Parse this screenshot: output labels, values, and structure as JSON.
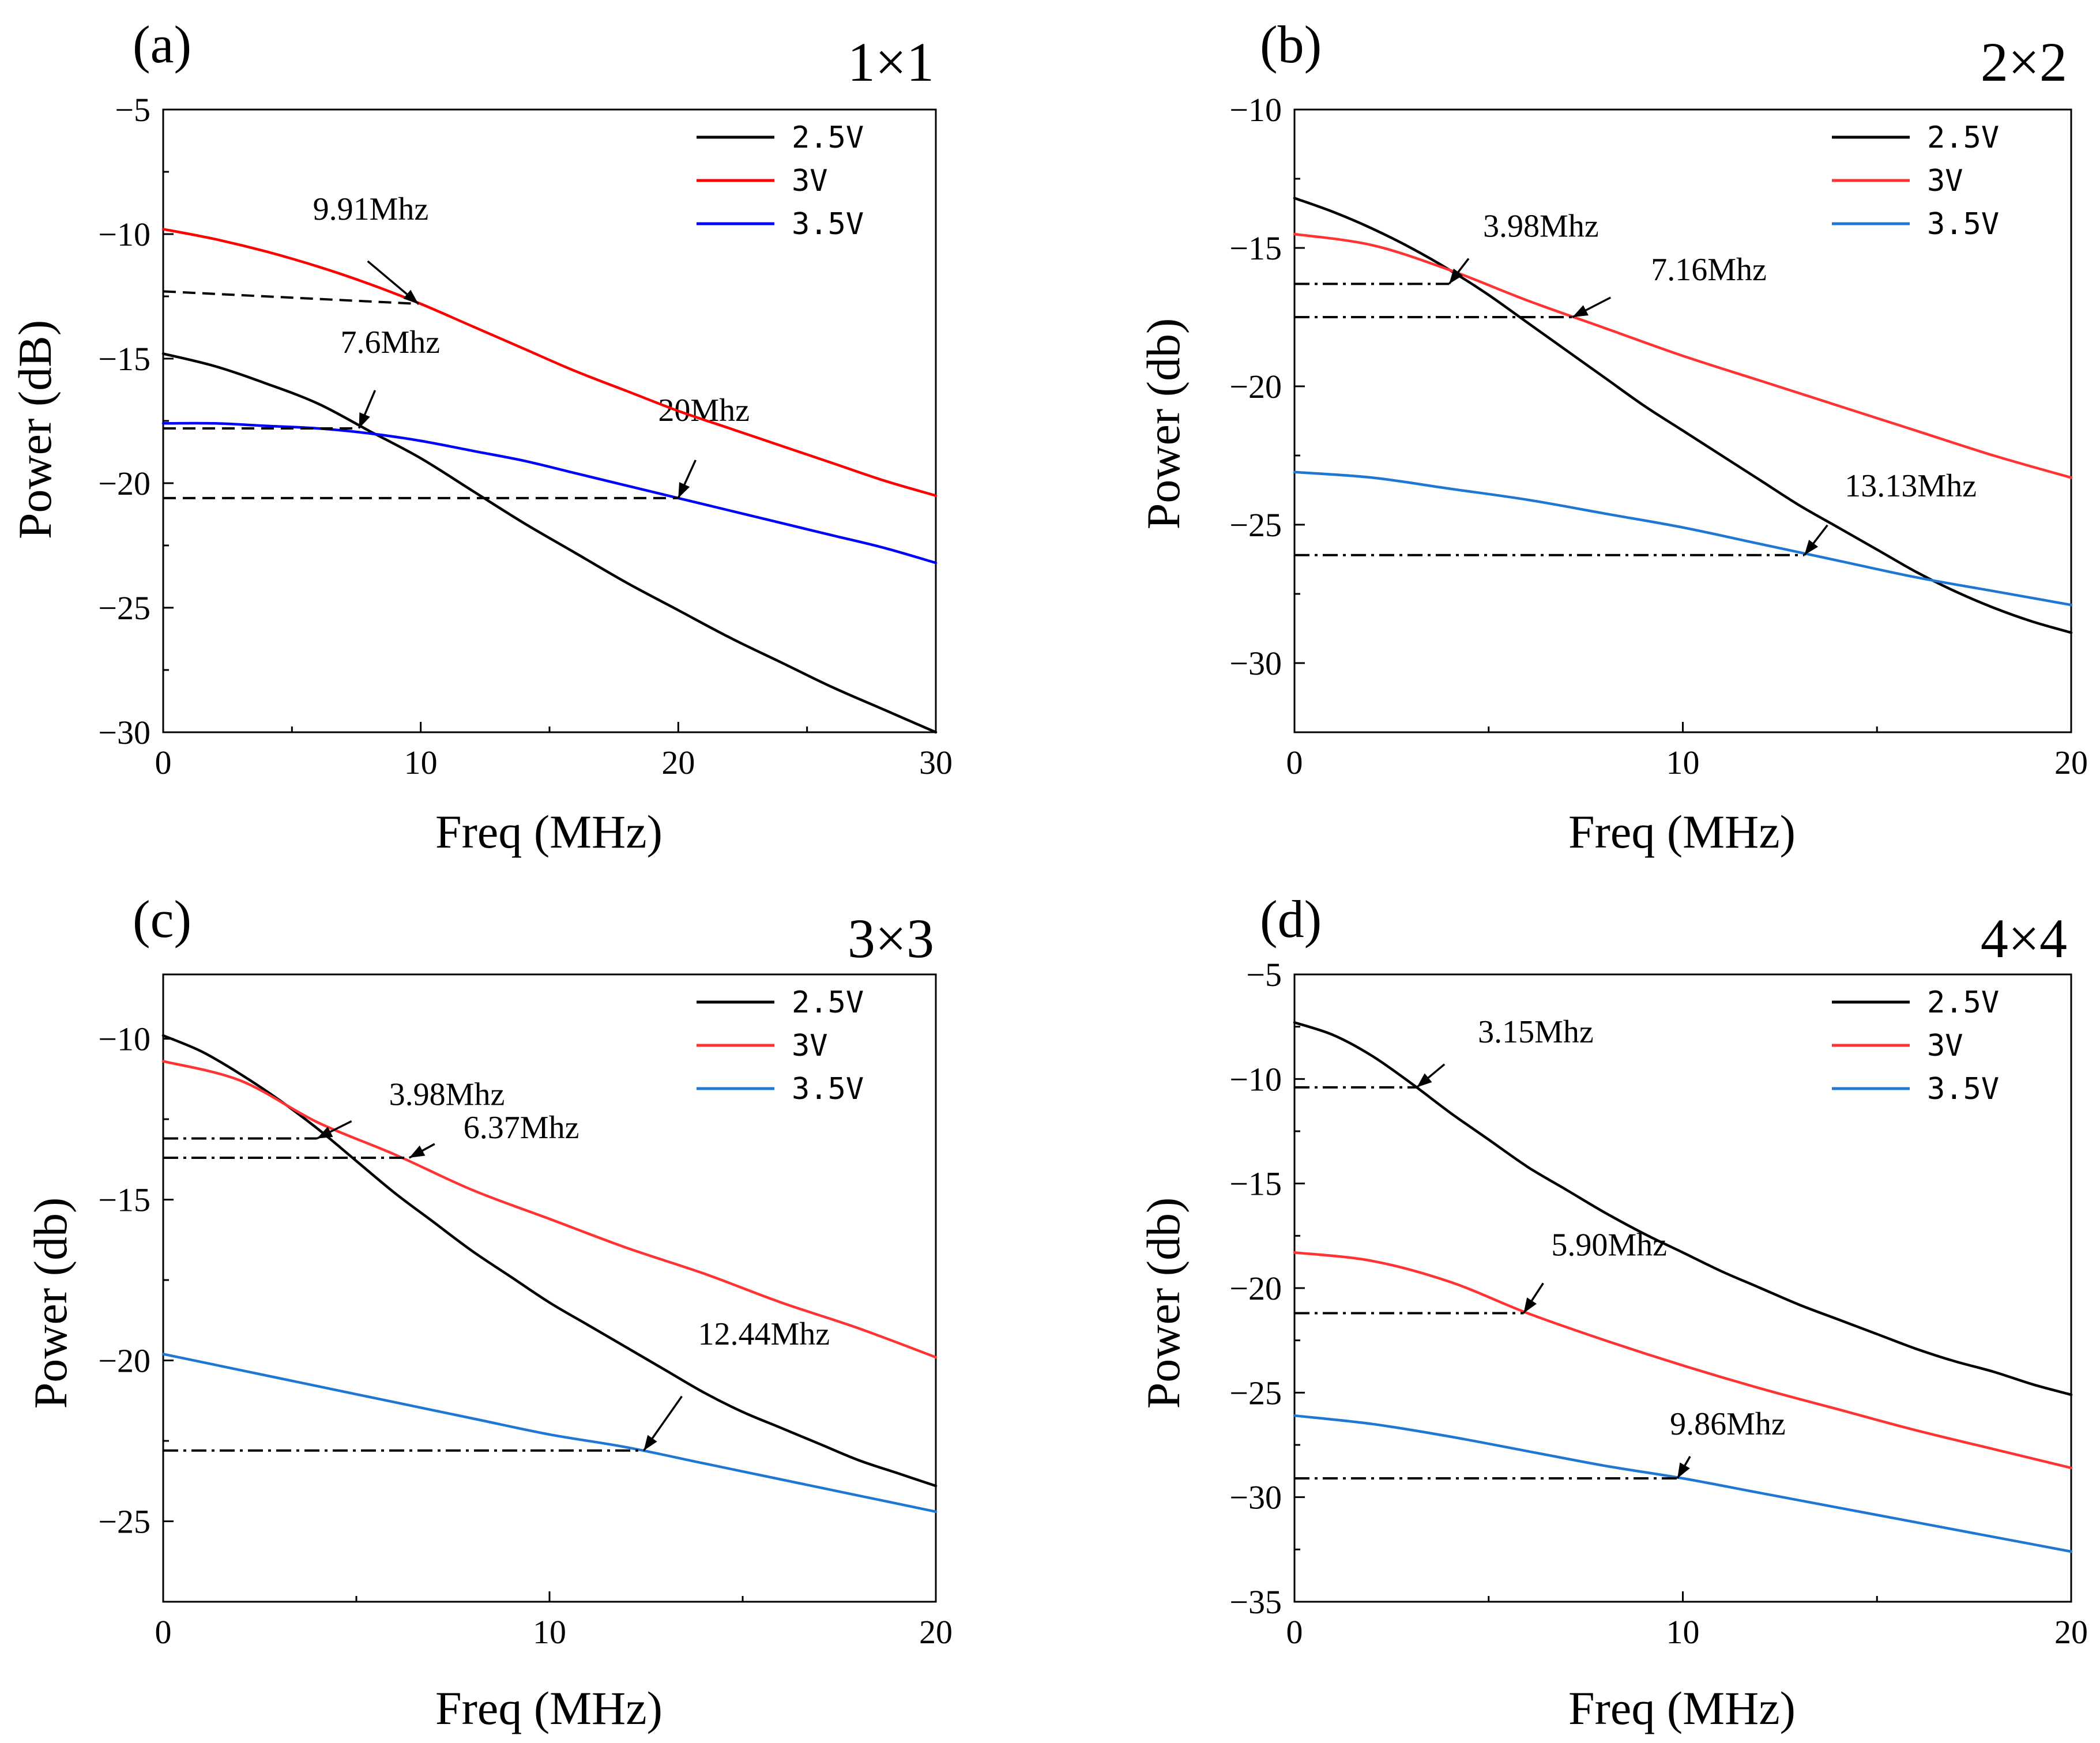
{
  "chart_data": [
    {
      "type": "line",
      "panel_label": "(a)",
      "subtitle": "1×1",
      "xlabel": "Freq (MHz)",
      "ylabel": "Power (dB)",
      "xlim": [
        0,
        30
      ],
      "ylim": [
        -30,
        -5
      ],
      "xticks": [
        0,
        10,
        20,
        30
      ],
      "yticks": [
        -30,
        -25,
        -20,
        -15,
        -10,
        -5
      ],
      "legend": "top-right",
      "series": [
        {
          "name": "2.5V",
          "color": "#000000",
          "x": [
            0,
            2,
            4,
            6,
            8,
            10,
            12,
            14,
            16,
            18,
            20,
            22,
            24,
            26,
            28,
            30
          ],
          "y": [
            -14.8,
            -15.3,
            -16.0,
            -16.8,
            -17.9,
            -19.0,
            -20.3,
            -21.6,
            -22.8,
            -24.0,
            -25.1,
            -26.2,
            -27.2,
            -28.2,
            -29.1,
            -30.0
          ]
        },
        {
          "name": "3V",
          "color": "#ff0000",
          "x": [
            0,
            2,
            4,
            6,
            8,
            10,
            12,
            14,
            16,
            18,
            20,
            22,
            24,
            26,
            28,
            30
          ],
          "y": [
            -9.8,
            -10.2,
            -10.7,
            -11.3,
            -12.0,
            -12.8,
            -13.7,
            -14.6,
            -15.5,
            -16.3,
            -17.1,
            -17.8,
            -18.5,
            -19.2,
            -19.9,
            -20.5
          ]
        },
        {
          "name": "3.5V",
          "color": "#0000ff",
          "x": [
            0,
            2,
            4,
            6,
            8,
            10,
            12,
            14,
            16,
            18,
            20,
            22,
            24,
            26,
            28,
            30
          ],
          "y": [
            -17.6,
            -17.6,
            -17.7,
            -17.8,
            -18.0,
            -18.3,
            -18.7,
            -19.1,
            -19.6,
            -20.1,
            -20.6,
            -21.1,
            -21.6,
            -22.1,
            -22.6,
            -23.2
          ]
        }
      ],
      "annotations": [
        {
          "text": "9.91Mhz",
          "x": 9.91,
          "y": -12.8,
          "line_style": "dashed",
          "line_x": [
            0,
            9.91
          ],
          "line_y": [
            -12.3,
            -12.8
          ]
        },
        {
          "text": "7.6Mhz",
          "x": 7.6,
          "y": -17.8,
          "line_style": "dashed",
          "line_x": [
            0,
            7.6
          ],
          "line_y": [
            -17.8,
            -17.8
          ]
        },
        {
          "text": "20Mhz",
          "x": 20,
          "y": -20.6,
          "line_style": "dashed",
          "line_x": [
            0,
            20
          ],
          "line_y": [
            -20.6,
            -20.6
          ]
        }
      ]
    },
    {
      "type": "line",
      "panel_label": "(b)",
      "subtitle": "2×2",
      "xlabel": "Freq (MHz)",
      "ylabel": "Power (db)",
      "xlim": [
        0,
        20
      ],
      "ylim": [
        -32.5,
        -10
      ],
      "xticks": [
        0,
        10,
        20
      ],
      "yticks": [
        -30,
        -25,
        -20,
        -15,
        -10
      ],
      "legend": "top-right",
      "series": [
        {
          "name": "2.5V",
          "color": "#000000",
          "x": [
            0,
            1,
            2,
            3,
            4,
            5,
            6,
            7,
            8,
            9,
            10,
            11,
            12,
            13,
            14,
            15,
            16,
            17,
            18,
            19,
            20
          ],
          "y": [
            -13.2,
            -13.7,
            -14.3,
            -15.0,
            -15.8,
            -16.7,
            -17.7,
            -18.7,
            -19.7,
            -20.7,
            -21.6,
            -22.5,
            -23.4,
            -24.3,
            -25.1,
            -25.9,
            -26.7,
            -27.4,
            -28.0,
            -28.5,
            -28.9
          ]
        },
        {
          "name": "3V",
          "color": "#ff3333",
          "x": [
            0,
            2,
            4,
            6,
            8,
            10,
            12,
            14,
            16,
            18,
            20
          ],
          "y": [
            -14.5,
            -14.9,
            -15.8,
            -16.9,
            -17.9,
            -18.9,
            -19.8,
            -20.7,
            -21.6,
            -22.5,
            -23.3
          ]
        },
        {
          "name": "3.5V",
          "color": "#1f77d4",
          "x": [
            0,
            2,
            4,
            6,
            8,
            10,
            12,
            14,
            16,
            18,
            20
          ],
          "y": [
            -23.1,
            -23.3,
            -23.7,
            -24.1,
            -24.6,
            -25.1,
            -25.7,
            -26.3,
            -26.9,
            -27.4,
            -27.9
          ]
        }
      ],
      "annotations": [
        {
          "text": "3.98Mhz",
          "x": 3.98,
          "y": -16.3,
          "line_style": "dashdot",
          "line_x": [
            0,
            3.98
          ],
          "line_y": [
            -16.3,
            -16.3
          ]
        },
        {
          "text": "7.16Mhz",
          "x": 7.16,
          "y": -17.5,
          "line_style": "dashdot",
          "line_x": [
            0,
            7.16
          ],
          "line_y": [
            -17.5,
            -17.5
          ]
        },
        {
          "text": "13.13Mhz",
          "x": 13.13,
          "y": -26.1,
          "line_style": "dashdot",
          "line_x": [
            0,
            13.13
          ],
          "line_y": [
            -26.1,
            -26.1
          ]
        }
      ]
    },
    {
      "type": "line",
      "panel_label": "(c)",
      "subtitle": "3×3",
      "xlabel": "Freq (MHz)",
      "ylabel": "Power (db)",
      "xlim": [
        0,
        20
      ],
      "ylim": [
        -27.5,
        -8
      ],
      "xticks": [
        0,
        10,
        20
      ],
      "yticks": [
        -25,
        -20,
        -15,
        -10
      ],
      "legend": "top-right",
      "series": [
        {
          "name": "2.5V",
          "color": "#000000",
          "x": [
            0,
            1,
            2,
            3,
            4,
            5,
            6,
            7,
            8,
            9,
            10,
            11,
            12,
            13,
            14,
            15,
            16,
            17,
            18,
            19,
            20
          ],
          "y": [
            -9.9,
            -10.4,
            -11.1,
            -11.9,
            -12.8,
            -13.8,
            -14.8,
            -15.7,
            -16.6,
            -17.4,
            -18.2,
            -18.9,
            -19.6,
            -20.3,
            -21.0,
            -21.6,
            -22.1,
            -22.6,
            -23.1,
            -23.5,
            -23.9
          ]
        },
        {
          "name": "3V",
          "color": "#ff3333",
          "x": [
            0,
            2,
            4,
            6,
            8,
            10,
            12,
            14,
            16,
            18,
            20
          ],
          "y": [
            -10.7,
            -11.3,
            -12.6,
            -13.6,
            -14.7,
            -15.6,
            -16.5,
            -17.3,
            -18.2,
            -19.0,
            -19.9
          ]
        },
        {
          "name": "3.5V",
          "color": "#1f77d4",
          "x": [
            0,
            2,
            4,
            6,
            8,
            10,
            12,
            14,
            16,
            18,
            20
          ],
          "y": [
            -19.8,
            -20.3,
            -20.8,
            -21.3,
            -21.8,
            -22.3,
            -22.7,
            -23.2,
            -23.7,
            -24.2,
            -24.7
          ]
        }
      ],
      "annotations": [
        {
          "text": "3.98Mhz",
          "x": 3.98,
          "y": -13.1,
          "line_style": "dashdot",
          "line_x": [
            0,
            3.98
          ],
          "line_y": [
            -13.1,
            -13.1
          ]
        },
        {
          "text": "6.37Mhz",
          "x": 6.37,
          "y": -13.7,
          "line_style": "dashdot",
          "line_x": [
            0,
            6.37
          ],
          "line_y": [
            -13.7,
            -13.7
          ]
        },
        {
          "text": "12.44Mhz",
          "x": 12.44,
          "y": -22.8,
          "line_style": "dashdot",
          "line_x": [
            0,
            12.44
          ],
          "line_y": [
            -22.8,
            -22.8
          ]
        }
      ]
    },
    {
      "type": "line",
      "panel_label": "(d)",
      "subtitle": "4×4",
      "xlabel": "Freq (MHz)",
      "ylabel": "Power (db)",
      "xlim": [
        0,
        20
      ],
      "ylim": [
        -35,
        -5
      ],
      "xticks": [
        0,
        10,
        20
      ],
      "yticks": [
        -35,
        -30,
        -25,
        -20,
        -15,
        -10,
        -5
      ],
      "legend": "top-right",
      "series": [
        {
          "name": "2.5V",
          "color": "#000000",
          "x": [
            0,
            1,
            2,
            3,
            4,
            5,
            6,
            7,
            8,
            9,
            10,
            11,
            12,
            13,
            14,
            15,
            16,
            17,
            18,
            19,
            20
          ],
          "y": [
            -7.3,
            -7.9,
            -8.9,
            -10.2,
            -11.6,
            -12.9,
            -14.2,
            -15.3,
            -16.4,
            -17.4,
            -18.3,
            -19.2,
            -20.0,
            -20.8,
            -21.5,
            -22.2,
            -22.9,
            -23.5,
            -24.0,
            -24.6,
            -25.1
          ]
        },
        {
          "name": "3V",
          "color": "#ff3333",
          "x": [
            0,
            2,
            4,
            6,
            8,
            10,
            12,
            14,
            16,
            18,
            20
          ],
          "y": [
            -18.3,
            -18.7,
            -19.7,
            -21.2,
            -22.5,
            -23.7,
            -24.8,
            -25.8,
            -26.8,
            -27.7,
            -28.6
          ]
        },
        {
          "name": "3.5V",
          "color": "#1f77d4",
          "x": [
            0,
            2,
            4,
            6,
            8,
            10,
            12,
            14,
            16,
            18,
            20
          ],
          "y": [
            -26.1,
            -26.5,
            -27.1,
            -27.8,
            -28.5,
            -29.1,
            -29.8,
            -30.5,
            -31.2,
            -31.9,
            -32.6
          ]
        }
      ],
      "annotations": [
        {
          "text": "3.15Mhz",
          "x": 3.15,
          "y": -10.4,
          "line_style": "dashdot",
          "line_x": [
            0,
            3.15
          ],
          "line_y": [
            -10.4,
            -10.4
          ]
        },
        {
          "text": "5.90Mhz",
          "x": 5.9,
          "y": -21.2,
          "line_style": "dashdot",
          "line_x": [
            0,
            5.9
          ],
          "line_y": [
            -21.2,
            -21.2
          ]
        },
        {
          "text": "9.86Mhz",
          "x": 9.86,
          "y": -29.1,
          "line_style": "dashdot",
          "line_x": [
            0,
            9.86
          ],
          "line_y": [
            -29.1,
            -29.1
          ]
        }
      ]
    }
  ]
}
